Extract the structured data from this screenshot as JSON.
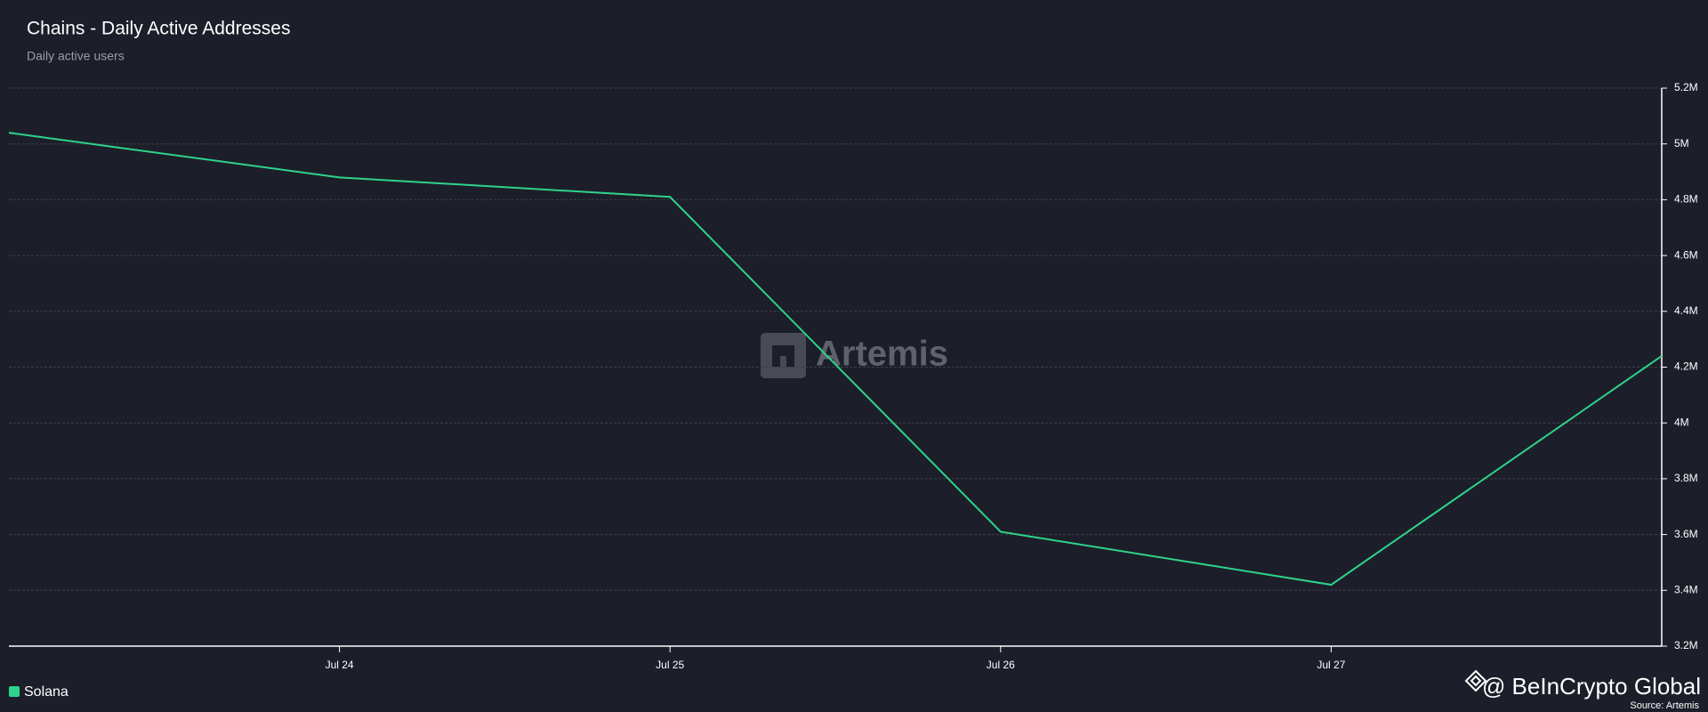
{
  "chart_data": {
    "type": "line",
    "title": "Chains - Daily Active Addresses",
    "subtitle": "Daily active users",
    "categories": [
      null,
      "Jul 24",
      "Jul 25",
      "Jul 26",
      "Jul 27",
      null
    ],
    "series": [
      {
        "name": "Solana",
        "color": "#2fd38c",
        "values": [
          5040000,
          4880000,
          4810000,
          3610000,
          3420000,
          4240000
        ]
      }
    ],
    "ylim": [
      3200000,
      5200000
    ],
    "yticks": [
      {
        "value": 3200000,
        "label": "3.2M"
      },
      {
        "value": 3400000,
        "label": "3.4M"
      },
      {
        "value": 3600000,
        "label": "3.6M"
      },
      {
        "value": 3800000,
        "label": "3.8M"
      },
      {
        "value": 4000000,
        "label": "4M"
      },
      {
        "value": 4200000,
        "label": "4.2M"
      },
      {
        "value": 4400000,
        "label": "4.4M"
      },
      {
        "value": 4600000,
        "label": "4.6M"
      },
      {
        "value": 4800000,
        "label": "4.8M"
      },
      {
        "value": 5000000,
        "label": "5M"
      },
      {
        "value": 5200000,
        "label": "5.2M"
      }
    ],
    "grid": true,
    "watermark": "Artemis",
    "branding": "@ BeInCrypto Global",
    "source": "Source: Artemis"
  }
}
